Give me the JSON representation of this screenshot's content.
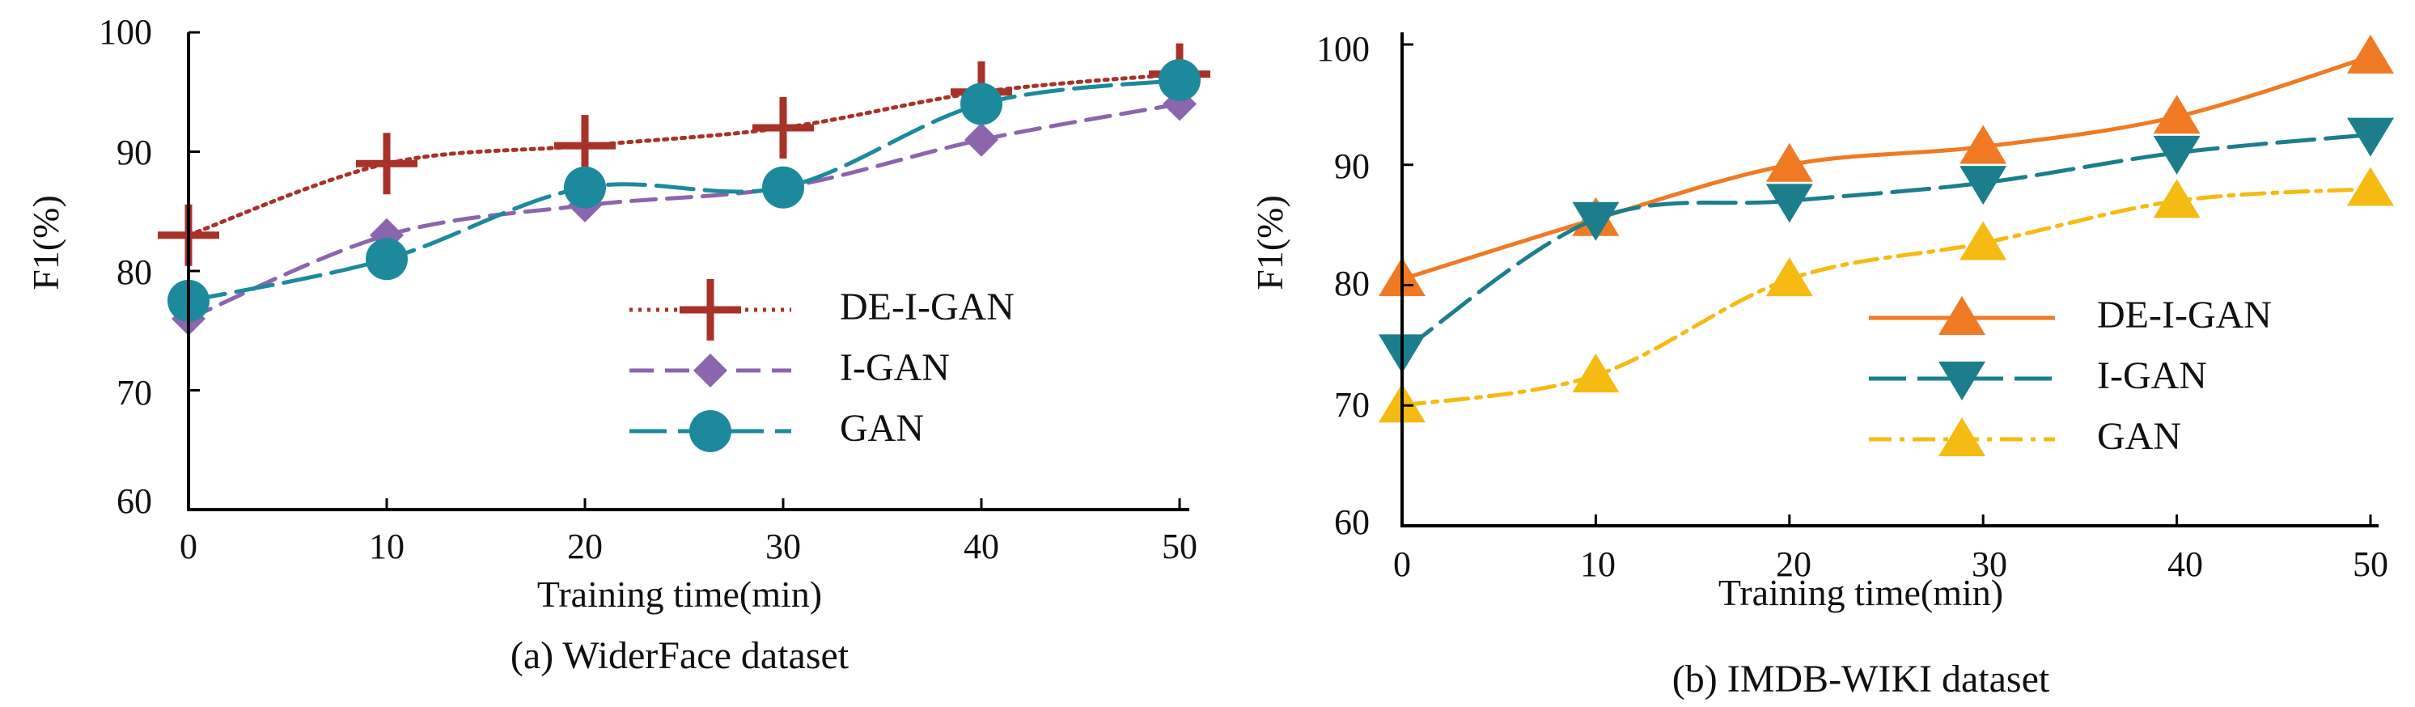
{
  "chart_data": [
    {
      "type": "line",
      "title": "(a) WiderFace dataset",
      "xlabel": "Training time(min)",
      "ylabel": "F1(%)",
      "x": [
        0,
        10,
        20,
        30,
        40,
        50
      ],
      "xlim": [
        0,
        50
      ],
      "ylim": [
        60,
        100
      ],
      "xticks": [
        "0",
        "10",
        "20",
        "30",
        "40",
        "50"
      ],
      "yticks": [
        "60",
        "70",
        "80",
        "90",
        "100"
      ],
      "legend_position": "lower-right",
      "series": [
        {
          "name": "DE-I-GAN",
          "values": [
            83,
            89,
            90.5,
            92,
            95,
            96.5
          ],
          "color": "#a83228",
          "dash": "dotted",
          "marker": "plus"
        },
        {
          "name": "I-GAN",
          "values": [
            76,
            83,
            85.5,
            87,
            91,
            94
          ],
          "color": "#8b65ad",
          "dash": "dashed",
          "marker": "diamond"
        },
        {
          "name": "GAN",
          "values": [
            77.5,
            81,
            87,
            87,
            94,
            96
          ],
          "color": "#1c8a9c",
          "dash": "longdash",
          "marker": "circle"
        }
      ]
    },
    {
      "type": "line",
      "title": "(b) IMDB-WIKI dataset",
      "xlabel": "Training time(min)",
      "ylabel": "F1(%)",
      "x": [
        0,
        10,
        20,
        30,
        40,
        50
      ],
      "xlim": [
        0,
        50
      ],
      "ylim": [
        60,
        100
      ],
      "xticks": [
        "0",
        "10",
        "20",
        "30",
        "40",
        "50"
      ],
      "yticks": [
        "60",
        "70",
        "80",
        "90",
        "100"
      ],
      "legend_position": "lower-right",
      "series": [
        {
          "name": "DE-I-GAN",
          "values": [
            80.5,
            85.5,
            90,
            91.5,
            94,
            99
          ],
          "color": "#f07a24",
          "dash": "solid",
          "marker": "triangle-up"
        },
        {
          "name": "I-GAN",
          "values": [
            74.5,
            85.5,
            87,
            88.5,
            91,
            92.5
          ],
          "color": "#1c7e8c",
          "dash": "longdash",
          "marker": "triangle-down"
        },
        {
          "name": "GAN",
          "values": [
            70,
            72.5,
            80.5,
            83.5,
            87,
            88
          ],
          "color": "#f5bb12",
          "dash": "dashdot",
          "marker": "triangle-up"
        }
      ]
    }
  ]
}
